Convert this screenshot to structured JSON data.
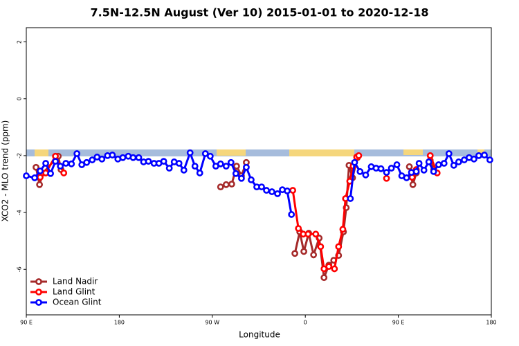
{
  "chart_data": {
    "type": "line",
    "title": "7.5N-12.5N August (Ver 10)   2015-01-01 to 2020-12-18",
    "xlabel": "Longitude",
    "ylabel": "XCO2 - MLO trend (ppm)",
    "xlim": [
      90,
      540
    ],
    "ylim": [
      -7.6,
      2.5
    ],
    "xticks": [
      {
        "value": 90,
        "label": "90 E"
      },
      {
        "value": 180,
        "label": "180"
      },
      {
        "value": 270,
        "label": "90 W"
      },
      {
        "value": 360,
        "label": "0"
      },
      {
        "value": 450,
        "label": "90 E"
      },
      {
        "value": 540,
        "label": "180"
      }
    ],
    "yticks": [
      -6,
      -4,
      -2,
      0,
      2
    ],
    "grid": false,
    "legend_position": "bottomleft",
    "series": [
      {
        "name": "Land Nadir",
        "color": "#a52a2a",
        "x": [
          99.4,
          102.8,
          106.1,
          120.9,
          123.6,
          null,
          278.0,
          283.4,
          288.8,
          293.5,
          298.2,
          302.9,
          null,
          349.9,
          354.6,
          358.6,
          363.3,
          368.0,
          373.4,
          378.1,
          382.8,
          387.5,
          392.2,
          396.9,
          399.6,
          402.3,
          405.7,
          410.4,
          null,
          460.7,
          464.1,
          467.4,
          null,
          480.9,
          484.2
        ],
        "values": [
          -2.41,
          -3.02,
          -2.61,
          -2.02,
          -2.49,
          null,
          -3.1,
          -3.02,
          -3.0,
          -2.37,
          -2.71,
          -2.24,
          null,
          -5.44,
          -4.68,
          -5.37,
          -4.73,
          -5.49,
          -4.9,
          -6.29,
          -5.85,
          -5.68,
          -5.51,
          -4.68,
          -3.83,
          -2.34,
          -2.78,
          -2.07,
          null,
          -2.39,
          -3.02,
          -2.61,
          null,
          -2.17,
          -2.49
        ]
      },
      {
        "name": "Land Glint",
        "color": "#ff0000",
        "x": [
          103.4,
          108.8,
          118.2,
          126.3,
          null,
          347.9,
          353.3,
          358.0,
          362.7,
          370.1,
          374.8,
          378.1,
          382.8,
          388.2,
          392.2,
          396.3,
          398.9,
          403.0,
          406.3,
          409.7,
          411.7,
          null,
          438.6,
          null,
          463.4,
          467.4,
          null,
          480.9,
          487.6
        ],
        "values": [
          -2.76,
          -2.61,
          -2.02,
          -2.61,
          null,
          -3.22,
          -4.56,
          -4.76,
          -4.76,
          -4.76,
          -5.2,
          -5.98,
          -5.9,
          -5.98,
          -5.2,
          -4.59,
          -3.51,
          -2.9,
          -2.37,
          -2.05,
          -2.0,
          null,
          -2.8,
          null,
          -2.76,
          -2.49,
          null,
          -2.0,
          -2.61
        ]
      },
      {
        "name": "Ocean Glint",
        "color": "#0000ff",
        "x": [
          90.0,
          98.1,
          103.4,
          108.8,
          113.5,
          118.2,
          122.9,
          128.3,
          133.7,
          139.0,
          143.7,
          148.4,
          153.8,
          158.5,
          163.2,
          168.6,
          173.3,
          178.6,
          183.4,
          188.7,
          193.4,
          198.8,
          203.5,
          208.2,
          213.6,
          218.3,
          223.0,
          228.4,
          233.1,
          237.8,
          242.5,
          248.5,
          253.2,
          257.9,
          263.3,
          268.0,
          273.4,
          278.0,
          283.4,
          288.1,
          292.8,
          298.2,
          302.9,
          307.6,
          313.0,
          317.7,
          322.4,
          327.7,
          333.1,
          337.8,
          342.5,
          346.6,
          null,
          403.6,
          407.7,
          413.0,
          418.4,
          423.8,
          428.5,
          433.2,
          438.6,
          443.3,
          448.6,
          453.3,
          458.0,
          462.7,
          467.4,
          470.1,
          474.8,
          479.5,
          484.2,
          489.0,
          494.3,
          499.0,
          503.7,
          508.4,
          513.8,
          518.5,
          523.2,
          527.9,
          533.3,
          538.6
        ],
        "values": [
          -2.71,
          -2.78,
          -2.54,
          -2.27,
          -2.63,
          -2.2,
          -2.37,
          -2.27,
          -2.29,
          -1.93,
          -2.32,
          -2.24,
          -2.15,
          -2.05,
          -2.12,
          -2.0,
          -1.98,
          -2.12,
          -2.07,
          -2.02,
          -2.07,
          -2.07,
          -2.22,
          -2.2,
          -2.27,
          -2.27,
          -2.2,
          -2.44,
          -2.22,
          -2.27,
          -2.51,
          -1.9,
          -2.37,
          -2.61,
          -1.93,
          -2.02,
          -2.37,
          -2.29,
          -2.37,
          -2.24,
          -2.63,
          -2.8,
          -2.41,
          -2.85,
          -3.1,
          -3.1,
          -3.22,
          -3.27,
          -3.34,
          -3.2,
          -3.24,
          -4.07,
          null,
          -3.51,
          -2.24,
          -2.56,
          -2.68,
          -2.39,
          -2.44,
          -2.46,
          -2.59,
          -2.44,
          -2.32,
          -2.71,
          -2.78,
          -2.59,
          -2.56,
          -2.27,
          -2.51,
          -2.22,
          -2.56,
          -2.32,
          -2.27,
          -1.93,
          -2.34,
          -2.22,
          -2.15,
          -2.07,
          -2.12,
          -2.0,
          -1.98,
          -2.15
        ]
      }
    ]
  }
}
